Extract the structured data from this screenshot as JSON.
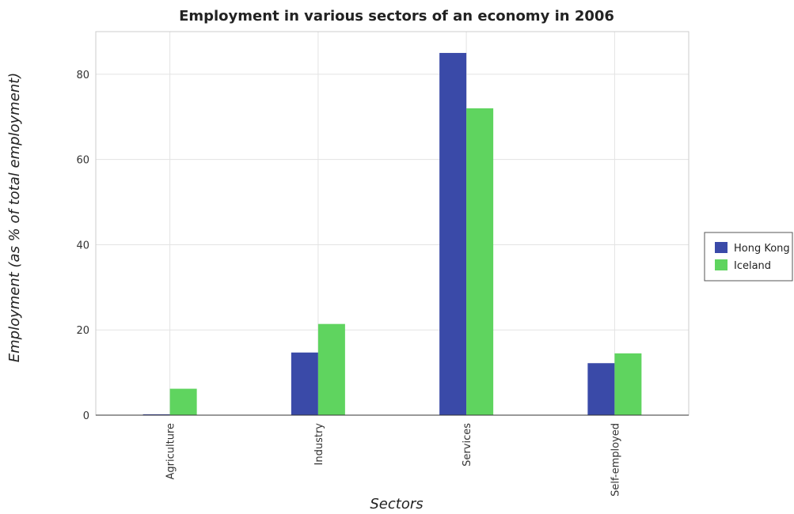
{
  "chart_data": {
    "type": "bar",
    "title": "Employment in various sectors of an economy in 2006",
    "xlabel": "Sectors",
    "ylabel": "Employment (as % of total employment)",
    "categories": [
      "Agriculture",
      "Industry",
      "Services",
      "Self-employed"
    ],
    "series": [
      {
        "name": "Hong Kong",
        "color": "#3a4aa8",
        "values": [
          0.2,
          14.7,
          85.0,
          12.2
        ]
      },
      {
        "name": "Iceland",
        "color": "#5fd45f",
        "values": [
          6.2,
          21.4,
          72.0,
          14.5
        ]
      }
    ],
    "ylim": [
      0,
      90
    ],
    "yticks": [
      0,
      20,
      40,
      60,
      80
    ],
    "grid": true,
    "legend_position": "right"
  }
}
